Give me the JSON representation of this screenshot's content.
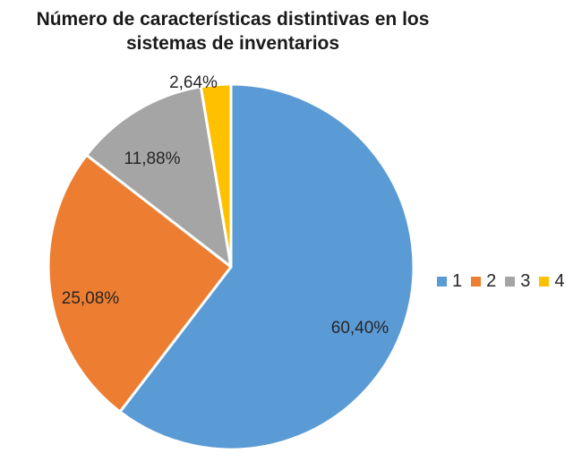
{
  "chart_data": {
    "type": "pie",
    "title": "Número de características distintivas en los sistemas de inventarios",
    "title_lines": [
      "Número de características distintivas en los",
      "sistemas de inventarios"
    ],
    "categories": [
      "1",
      "2",
      "3",
      "4"
    ],
    "values": [
      60.4,
      25.08,
      11.88,
      2.64
    ],
    "labels": [
      "60,40%",
      "25,08%",
      "11,88%",
      "2,64%"
    ],
    "colors": [
      "#5B9BD5",
      "#ED7D31",
      "#A5A5A5",
      "#FFC000"
    ],
    "legend_position": "right"
  }
}
